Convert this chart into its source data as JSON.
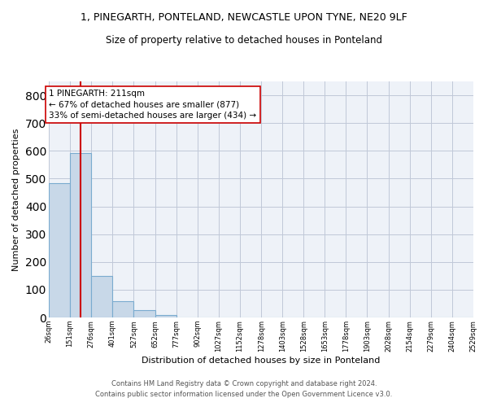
{
  "title1": "1, PINEGARTH, PONTELAND, NEWCASTLE UPON TYNE, NE20 9LF",
  "title2": "Size of property relative to detached houses in Ponteland",
  "xlabel": "Distribution of detached houses by size in Ponteland",
  "ylabel": "Number of detached properties",
  "bar_color": "#c8d8e8",
  "bar_edge_color": "#7aabcf",
  "grid_color": "#c0c8d8",
  "background_color": "#eef2f8",
  "vline_color": "#cc0000",
  "vline_x": 211,
  "annotation_text": "1 PINEGARTH: 211sqm\n← 67% of detached houses are smaller (877)\n33% of semi-detached houses are larger (434) →",
  "footer1": "Contains HM Land Registry data © Crown copyright and database right 2024.",
  "footer2": "Contains public sector information licensed under the Open Government Licence v3.0.",
  "bin_edges": [
    26,
    151,
    276,
    401,
    527,
    652,
    777,
    902,
    1027,
    1152,
    1278,
    1403,
    1528,
    1653,
    1778,
    1903,
    2028,
    2154,
    2279,
    2404,
    2529
  ],
  "bar_heights": [
    484,
    591,
    149,
    60,
    26,
    9,
    0,
    0,
    0,
    0,
    0,
    0,
    0,
    0,
    0,
    0,
    0,
    0,
    0,
    0
  ],
  "ylim": [
    0,
    850
  ],
  "yticks": [
    0,
    100,
    200,
    300,
    400,
    500,
    600,
    700,
    800
  ],
  "tick_labels": [
    "26sqm",
    "151sqm",
    "276sqm",
    "401sqm",
    "527sqm",
    "652sqm",
    "777sqm",
    "902sqm",
    "1027sqm",
    "1152sqm",
    "1278sqm",
    "1403sqm",
    "1528sqm",
    "1653sqm",
    "1778sqm",
    "1903sqm",
    "2028sqm",
    "2154sqm",
    "2279sqm",
    "2404sqm",
    "2529sqm"
  ],
  "title1_fontsize": 9,
  "title2_fontsize": 8.5,
  "xlabel_fontsize": 8,
  "ylabel_fontsize": 8,
  "xtick_fontsize": 6,
  "ytick_fontsize": 7.5,
  "footer_fontsize": 6,
  "annotation_fontsize": 7.5
}
